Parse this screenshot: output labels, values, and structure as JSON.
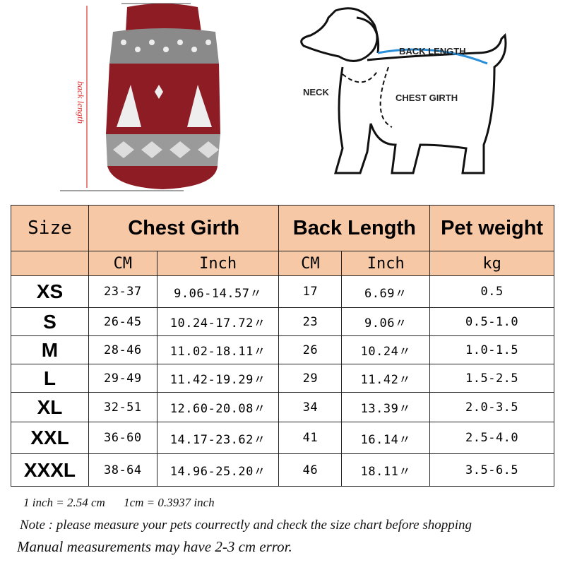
{
  "diagram": {
    "sweater_label": "back length",
    "dog_labels": {
      "neck": "NECK",
      "back_length": "BACK LENGTH",
      "chest_girth": "CHEST GIRTH"
    }
  },
  "table": {
    "headers": {
      "size": "Size",
      "chest": "Chest Girth",
      "back": "Back Length",
      "weight": "Pet weight"
    },
    "units": [
      "CM",
      "Inch",
      "CM",
      "Inch",
      "kg"
    ],
    "rows": [
      {
        "size": "XS",
        "chest_cm": "23-37",
        "chest_in": "9.06-14.57〃",
        "back_cm": "17",
        "back_in": "6.69〃",
        "weight": "0.5"
      },
      {
        "size": "S",
        "chest_cm": "26-45",
        "chest_in": "10.24-17.72〃",
        "back_cm": "23",
        "back_in": "9.06〃",
        "weight": "0.5-1.0"
      },
      {
        "size": "M",
        "chest_cm": "28-46",
        "chest_in": "11.02-18.11〃",
        "back_cm": "26",
        "back_in": "10.24〃",
        "weight": "1.0-1.5"
      },
      {
        "size": "L",
        "chest_cm": "29-49",
        "chest_in": "11.42-19.29〃",
        "back_cm": "29",
        "back_in": "11.42〃",
        "weight": "1.5-2.5"
      },
      {
        "size": "XL",
        "chest_cm": "32-51",
        "chest_in": "12.60-20.08〃",
        "back_cm": "34",
        "back_in": "13.39〃",
        "weight": "2.0-3.5"
      },
      {
        "size": "XXL",
        "chest_cm": "36-60",
        "chest_in": "14.17-23.62〃",
        "back_cm": "41",
        "back_in": "16.14〃",
        "weight": "2.5-4.0"
      },
      {
        "size": "XXXL",
        "chest_cm": "38-64",
        "chest_in": "14.96-25.20〃",
        "back_cm": "46",
        "back_in": "18.11〃",
        "weight": "3.5-6.5"
      }
    ]
  },
  "notes": {
    "conversion1": "1 inch = 2.54 cm",
    "conversion2": "1cm = 0.3937 inch",
    "note": "Note : please measure your pets courrectly and check the size chart before shopping",
    "error": "Manual measurements may have 2-3 cm error."
  },
  "colors": {
    "header_bg": "#f7c8a6",
    "sweater_red": "#8e1c24",
    "sweater_grey": "#8a8a8a",
    "arrow_blue": "#2a8fd8"
  }
}
